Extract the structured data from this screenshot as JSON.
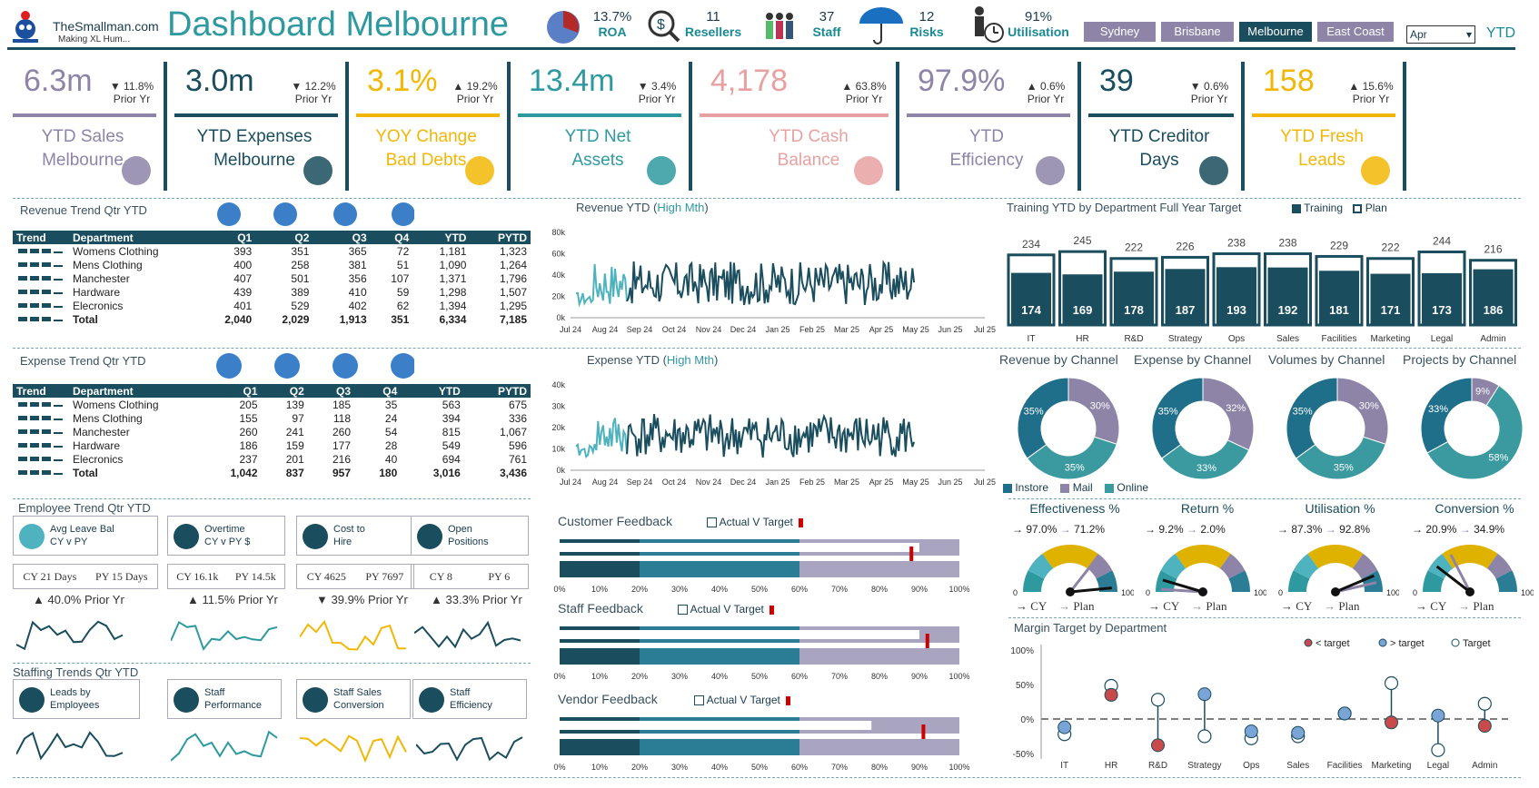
{
  "header": {
    "logo_name": "TheSmallman.com",
    "logo_tag": "Making XL Hum...",
    "title": "Dashboard Melbourne",
    "stats": [
      {
        "value": "13.7%",
        "label": "ROA",
        "icon": "pie-chart-icon"
      },
      {
        "value": "11",
        "label": "Resellers",
        "icon": "magnifier-dollar-icon"
      },
      {
        "value": "37",
        "label": "Staff",
        "icon": "people-icon"
      },
      {
        "value": "12",
        "label": "Risks",
        "icon": "umbrella-icon"
      },
      {
        "value": "91%",
        "label": "Utilisation",
        "icon": "clock-worker-icon"
      }
    ],
    "cities": [
      "Sydney",
      "Brisbane",
      "Melbourne",
      "East Coast"
    ],
    "selected_city": "Melbourne",
    "month": "Apr",
    "period": "YTD",
    "colors": {
      "accent": "#1a4d5e",
      "teal": "#2e9aa0",
      "purple": "#8d84a8",
      "gold": "#f2b705",
      "pink": "#e8a1a1"
    }
  },
  "kpis": [
    {
      "value": "6.3m",
      "dir": "▼",
      "pct": "11.8%",
      "prior": "Prior Yr",
      "title1": "YTD Sales",
      "title2": "Melbourne",
      "color": "#8d84a8"
    },
    {
      "value": "3.0m",
      "dir": "▼",
      "pct": "12.2%",
      "prior": "Prior Yr",
      "title1": "YTD Expenses",
      "title2": "Melbourne",
      "color": "#1a4d5e"
    },
    {
      "value": "3.1%",
      "dir": "▲",
      "pct": "19.2%",
      "prior": "Prior Yr",
      "title1": "YOY Change",
      "title2": "Bad Debts",
      "color": "#f2b705"
    },
    {
      "value": "13.4m",
      "dir": "▼",
      "pct": "3.4%",
      "prior": "Prior Yr",
      "title1": "YTD Net",
      "title2": "Assets",
      "color": "#2e9aa0"
    },
    {
      "value": "4,178",
      "dir": "▲",
      "pct": "63.8%",
      "prior": "Prior Yr",
      "title1": "YTD Cash",
      "title2": "Balance",
      "color": "#e8a1a1"
    },
    {
      "value": "97.9%",
      "dir": "▲",
      "pct": "0.6%",
      "prior": "Prior Yr",
      "title1": "YTD",
      "title2": "Efficiency",
      "color": "#8d84a8"
    },
    {
      "value": "39",
      "dir": "▼",
      "pct": "0.6%",
      "prior": "Prior Yr",
      "title1": "YTD Creditor",
      "title2": "Days",
      "color": "#1a4d5e"
    },
    {
      "value": "158",
      "dir": "▲",
      "pct": "15.6%",
      "prior": "Prior Yr",
      "title1": "YTD Fresh",
      "title2": "Leads",
      "color": "#f2b705"
    }
  ],
  "revenue_table": {
    "title": "Revenue Trend Qtr YTD",
    "headers": [
      "Trend",
      "Department",
      "Q1",
      "Q2",
      "Q3",
      "Q4",
      "YTD",
      "PYTD"
    ],
    "rows": [
      [
        "Womens Clothing",
        "393",
        "351",
        "365",
        "72",
        "1,181",
        "1,323"
      ],
      [
        "Mens Clothing",
        "400",
        "258",
        "381",
        "51",
        "1,090",
        "1,264"
      ],
      [
        "Manchester",
        "407",
        "501",
        "356",
        "107",
        "1,371",
        "1,796"
      ],
      [
        "Hardware",
        "439",
        "389",
        "410",
        "59",
        "1,298",
        "1,507"
      ],
      [
        "Elecronics",
        "401",
        "529",
        "402",
        "62",
        "1,394",
        "1,295"
      ],
      [
        "Total",
        "2,040",
        "2,029",
        "1,913",
        "351",
        "6,334",
        "7,185"
      ]
    ]
  },
  "expense_table": {
    "title": "Expense Trend Qtr YTD",
    "headers": [
      "Trend",
      "Department",
      "Q1",
      "Q2",
      "Q3",
      "Q4",
      "YTD",
      "PYTD"
    ],
    "rows": [
      [
        "Womens Clothing",
        "205",
        "139",
        "185",
        "35",
        "563",
        "675"
      ],
      [
        "Mens Clothing",
        "155",
        "97",
        "118",
        "24",
        "394",
        "336"
      ],
      [
        "Manchester",
        "260",
        "241",
        "260",
        "54",
        "815",
        "1,067"
      ],
      [
        "Hardware",
        "186",
        "159",
        "177",
        "28",
        "549",
        "596"
      ],
      [
        "Elecronics",
        "237",
        "201",
        "216",
        "40",
        "694",
        "761"
      ],
      [
        "Total",
        "1,042",
        "837",
        "957",
        "180",
        "3,016",
        "3,436"
      ]
    ]
  },
  "revenue_chart": {
    "title_a": "Revenue YTD (",
    "title_b": "High Mth",
    "title_c": ")",
    "yticks": [
      "80k",
      "60k",
      "40k",
      "20k",
      "0k"
    ],
    "xticks": [
      "Jul 24",
      "Aug 24",
      "Sep 24",
      "Oct 24",
      "Nov 24",
      "Dec 24",
      "Jan 25",
      "Feb 25",
      "Mar 25",
      "Apr 25",
      "May 25",
      "Jun 25",
      "Jul 25"
    ]
  },
  "expense_chart": {
    "title_a": "Expense YTD (",
    "title_b": "High Mth",
    "title_c": ")",
    "yticks": [
      "40k",
      "30k",
      "20k",
      "10k",
      "0k"
    ],
    "xticks": [
      "Jul 24",
      "Aug 24",
      "Sep 24",
      "Oct 24",
      "Nov 24",
      "Dec 24",
      "Jan 25",
      "Feb 25",
      "Mar 25",
      "Apr 25",
      "May 25",
      "Jun 25",
      "Jul 25"
    ]
  },
  "employee": {
    "title": "Employee Trend Qtr YTD",
    "cards": [
      {
        "l1": "Avg Leave Bal",
        "l2": "CY v PY",
        "cy": "CY 21 Days",
        "py": "PY 15 Days",
        "dir": "▲",
        "chg": "40.0% Prior Yr",
        "icon": "beach-icon",
        "color": "#1a4d5e"
      },
      {
        "l1": "Overtime",
        "l2": "CY v PY $",
        "cy": "CY 16.1k",
        "py": "PY 14.5k",
        "dir": "▲",
        "chg": "11.5% Prior Yr",
        "icon": "stopwatch-icon",
        "color": "#2e9aa0"
      },
      {
        "l1": "Cost to",
        "l2": "Hire",
        "cy": "CY 4625",
        "py": "PY 7697",
        "dir": "▼",
        "chg": "39.9% Prior Yr",
        "icon": "hire-icon",
        "color": "#f2b705"
      },
      {
        "l1": "Open",
        "l2": "Positions",
        "cy": "CY 8",
        "py": "PY 6",
        "dir": "▲",
        "chg": "33.3% Prior Yr",
        "icon": "cv-icon",
        "color": "#1a4d5e"
      }
    ]
  },
  "staffing": {
    "title": "Staffing Trends Qtr YTD",
    "cards": [
      {
        "l1": "Leads by",
        "l2": "Employees",
        "icon": "leads-icon",
        "color": "#1a4d5e"
      },
      {
        "l1": "Staff",
        "l2": "Performance",
        "icon": "performance-icon",
        "color": "#2e9aa0"
      },
      {
        "l1": "Staff Sales",
        "l2": "Conversion",
        "icon": "bulb-icon",
        "color": "#f2b705"
      },
      {
        "l1": "Staff",
        "l2": "Efficiency",
        "icon": "efficiency-icon",
        "color": "#1a4d5e"
      }
    ]
  },
  "feedback": {
    "legend": "Actual V Target",
    "ticks": [
      "0%",
      "10%",
      "20%",
      "30%",
      "40%",
      "50%",
      "60%",
      "70%",
      "80%",
      "90%",
      "100%"
    ],
    "charts": [
      {
        "title": "Customer Feedback",
        "actual": 0.9,
        "target": 0.88
      },
      {
        "title": "Staff Feedback",
        "actual": 0.9,
        "target": 0.92
      },
      {
        "title": "Vendor Feedback",
        "actual": 0.78,
        "target": 0.91
      }
    ]
  },
  "training": {
    "title": "Training YTD by Department Full Year Target",
    "legend_training": "Training",
    "legend_plan": "Plan",
    "departments": [
      "IT",
      "HR",
      "R&D",
      "Strategy",
      "Ops",
      "Sales",
      "Facilities",
      "Marketing",
      "Legal",
      "Admin"
    ],
    "plan": [
      234,
      245,
      222,
      226,
      238,
      238,
      229,
      222,
      244,
      216
    ],
    "actual": [
      174,
      169,
      178,
      187,
      193,
      192,
      181,
      171,
      173,
      186
    ]
  },
  "channels": {
    "legend": [
      "Instore",
      "Mail",
      "Online"
    ],
    "colors": [
      "#1f6e8a",
      "#8d84a8",
      "#3a9aa0"
    ],
    "charts": [
      {
        "title": "Revenue by Channel",
        "values": [
          35,
          30,
          35
        ]
      },
      {
        "title": "Expense by Channel",
        "values": [
          35,
          32,
          33
        ]
      },
      {
        "title": "Volumes by Channel",
        "values": [
          35,
          30,
          35
        ]
      },
      {
        "title": "Projects by Channel",
        "values": [
          33,
          9,
          58
        ]
      }
    ]
  },
  "gauges": {
    "cy_label": "CY",
    "plan_label": "Plan",
    "min": "0",
    "max": "100",
    "items": [
      {
        "title": "Effectiveness %",
        "cy": "97.0%",
        "plan": "71.2%",
        "cy_v": 97.0,
        "plan_v": 71.2
      },
      {
        "title": "Return %",
        "cy": "9.2%",
        "plan": "2.0%",
        "cy_v": 9.2,
        "plan_v": 2.0
      },
      {
        "title": "Utilisation %",
        "cy": "87.3%",
        "plan": "92.8%",
        "cy_v": 87.3,
        "plan_v": 92.8
      },
      {
        "title": "Conversion %",
        "cy": "20.9%",
        "plan": "34.9%",
        "cy_v": 20.9,
        "plan_v": 34.9
      }
    ]
  },
  "margin": {
    "title": "Margin Target by Department",
    "legend": [
      "< target",
      "> target",
      "Target"
    ],
    "yticks": [
      "100%",
      "50%",
      "0%",
      "-50%"
    ],
    "departments": [
      "IT",
      "HR",
      "R&D",
      "Strategy",
      "Ops",
      "Sales",
      "Facilities",
      "Marketing",
      "Legal",
      "Admin"
    ],
    "actual": [
      -0.12,
      0.35,
      -0.38,
      0.36,
      -0.18,
      -0.2,
      0.08,
      -0.05,
      0.05,
      -0.1
    ],
    "target": [
      -0.22,
      0.48,
      0.28,
      -0.25,
      -0.28,
      -0.25,
      0.08,
      0.52,
      -0.45,
      0.22
    ]
  }
}
